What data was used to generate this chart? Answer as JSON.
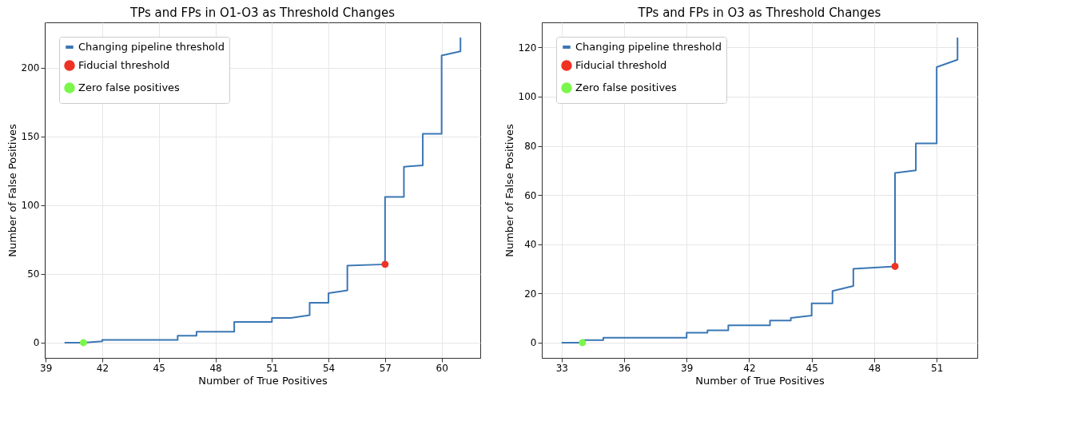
{
  "chart_data": [
    {
      "type": "line",
      "title": "TPs and FPs in O1-O3 as Threshold Changes",
      "xlabel": "Number of True Positives",
      "ylabel": "Number of False Positives",
      "xlim": [
        38.95,
        62.05
      ],
      "ylim": [
        -11.1,
        233.1
      ],
      "xticks": [
        39,
        42,
        45,
        48,
        51,
        54,
        57,
        60
      ],
      "yticks": [
        0,
        50,
        100,
        150,
        200
      ],
      "grid": true,
      "legend": "top left",
      "line_style": "solid",
      "series": [
        {
          "name": "Changing pipeline threshold",
          "type": "line",
          "color": "#3b77b4",
          "x": [
            40,
            41,
            42,
            42,
            46,
            46,
            47,
            47,
            49,
            49,
            51,
            51,
            52,
            53,
            53,
            54,
            54,
            55,
            55,
            57,
            57,
            58,
            58,
            59,
            59,
            60,
            60,
            61,
            61
          ],
          "values": [
            0,
            0,
            1,
            2,
            2,
            5,
            5,
            8,
            8,
            15,
            15,
            18,
            18,
            20,
            29,
            29,
            36,
            38,
            56,
            57,
            106,
            106,
            128,
            129,
            152,
            152,
            209,
            212,
            222
          ]
        },
        {
          "name": "Fiducial threshold",
          "type": "scatter",
          "color": "#ee3224",
          "x": [
            57
          ],
          "values": [
            57
          ]
        },
        {
          "name": "Zero false positives",
          "type": "scatter",
          "color": "#7af74a",
          "x": [
            41
          ],
          "values": [
            0
          ]
        }
      ]
    },
    {
      "type": "line",
      "title": "TPs and FPs in O3 as Threshold Changes",
      "xlabel": "Number of True Positives",
      "ylabel": "Number of False Positives",
      "xlim": [
        32.05,
        52.95
      ],
      "ylim": [
        -6.2,
        130.2
      ],
      "xticks": [
        33,
        36,
        39,
        42,
        45,
        48,
        51
      ],
      "yticks": [
        0,
        20,
        40,
        60,
        80,
        100,
        120
      ],
      "grid": true,
      "legend": "top left",
      "line_style": "solid",
      "series": [
        {
          "name": "Changing pipeline threshold",
          "type": "line",
          "color": "#3b77b4",
          "x": [
            33,
            34,
            34,
            35,
            35,
            39,
            39,
            40,
            40,
            41,
            41,
            43,
            43,
            44,
            44,
            45,
            45,
            46,
            46,
            47,
            47,
            49,
            49,
            50,
            50,
            51,
            51,
            52,
            52
          ],
          "values": [
            0,
            0,
            1,
            1,
            2,
            2,
            4,
            4,
            5,
            5,
            7,
            7,
            9,
            9,
            10,
            11,
            16,
            16,
            21,
            23,
            30,
            31,
            69,
            70,
            81,
            81,
            112,
            115,
            124
          ]
        },
        {
          "name": "Fiducial threshold",
          "type": "scatter",
          "color": "#ee3224",
          "x": [
            49
          ],
          "values": [
            31
          ]
        },
        {
          "name": "Zero false positives",
          "type": "scatter",
          "color": "#7af74a",
          "x": [
            34
          ],
          "values": [
            0
          ]
        }
      ]
    }
  ]
}
